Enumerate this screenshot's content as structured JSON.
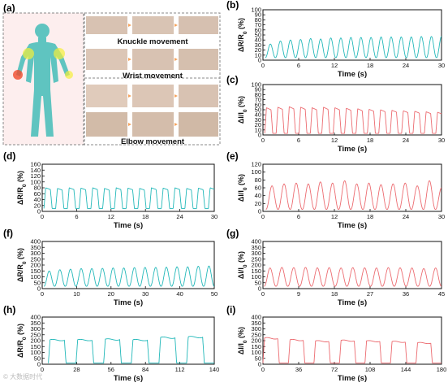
{
  "panel_a": {
    "label": "(a)",
    "captions": [
      "Knuckle movement",
      "Wrist movement",
      "Elbow movement"
    ],
    "colors": {
      "body": "#5fc4c0",
      "background": "#fdeeee",
      "glow_yellow": "#f3ef3a",
      "glow_red": "#f04a2a"
    }
  },
  "watermark": "© 大数据时代",
  "colors": {
    "cyan": "#22b8b9",
    "red": "#ec6b70"
  },
  "chart_data": [
    {
      "id": "b",
      "label": "(b)",
      "type": "line",
      "color": "#22b8b9",
      "xlabel": "Time (s)",
      "ylabel": "ΔR/R0 (%)",
      "xlim": [
        0,
        30
      ],
      "xticks": [
        0,
        6,
        12,
        18,
        24,
        30
      ],
      "ylim": [
        0,
        100
      ],
      "yticks": [
        0,
        10,
        20,
        30,
        40,
        50,
        60,
        70,
        80,
        90,
        100
      ],
      "series": [
        {
          "shape": "spike",
          "baseline": 5,
          "peaks": [
            32,
            38,
            40,
            41,
            43,
            42,
            44,
            44,
            45,
            45,
            45,
            46,
            46,
            46,
            46,
            47,
            47,
            47
          ],
          "cycles": 17.5,
          "x_start": 0.4,
          "x_end": 30
        }
      ]
    },
    {
      "id": "c",
      "label": "(c)",
      "type": "line",
      "color": "#ec6b70",
      "xlabel": "Time (s)",
      "ylabel": "ΔI/I0 (%)",
      "xlim": [
        0,
        30
      ],
      "xticks": [
        0,
        6,
        12,
        18,
        24,
        30
      ],
      "ylim": [
        0,
        100
      ],
      "yticks": [
        0,
        10,
        20,
        30,
        40,
        50,
        60,
        70,
        80,
        90,
        100
      ],
      "series": [
        {
          "shape": "plateau",
          "baseline": 3,
          "peaks": [
            54,
            55,
            56,
            55,
            54,
            55,
            54,
            53,
            52,
            51,
            50,
            49,
            48,
            47,
            46,
            45
          ],
          "cycles": 15.5,
          "x_start": 0.3,
          "x_end": 30
        }
      ]
    },
    {
      "id": "d",
      "label": "(d)",
      "type": "line",
      "color": "#22b8b9",
      "xlabel": "Time (s)",
      "ylabel": "ΔR/R0 (%)",
      "xlim": [
        0,
        30
      ],
      "xticks": [
        0,
        6,
        12,
        18,
        24,
        30
      ],
      "ylim": [
        0,
        160
      ],
      "yticks": [
        0,
        20,
        40,
        60,
        80,
        100,
        120,
        140,
        160
      ],
      "series": [
        {
          "shape": "plateau",
          "baseline": 10,
          "peaks": [
            80,
            78,
            80,
            79,
            80,
            78,
            80,
            79,
            78,
            80,
            79,
            80,
            78,
            79,
            80
          ],
          "cycles": 14.5,
          "x_start": 0.3,
          "x_end": 30
        }
      ]
    },
    {
      "id": "e",
      "label": "(e)",
      "type": "line",
      "color": "#ec6b70",
      "xlabel": "Time (s)",
      "ylabel": "ΔI/I0 (%)",
      "xlim": [
        0,
        30
      ],
      "xticks": [
        0,
        6,
        12,
        18,
        24,
        30
      ],
      "ylim": [
        0,
        120
      ],
      "yticks": [
        0,
        20,
        40,
        60,
        80,
        100,
        120
      ],
      "series": [
        {
          "shape": "spike",
          "baseline": 5,
          "peaks": [
            65,
            70,
            72,
            70,
            75,
            72,
            78,
            70,
            72,
            68,
            70,
            72,
            65,
            78,
            60
          ],
          "cycles": 14.5,
          "x_start": 0.5,
          "x_end": 30
        }
      ]
    },
    {
      "id": "f",
      "label": "(f)",
      "type": "line",
      "color": "#22b8b9",
      "xlabel": "Time (s)",
      "ylabel": "ΔR/R0 (%)",
      "xlim": [
        0,
        50
      ],
      "xticks": [
        0,
        10,
        20,
        30,
        40,
        50
      ],
      "ylim": [
        0,
        400
      ],
      "yticks": [
        0,
        50,
        100,
        150,
        200,
        250,
        300,
        350,
        400
      ],
      "series": [
        {
          "shape": "spike",
          "baseline": 20,
          "peaks": [
            150,
            160,
            165,
            170,
            170,
            172,
            175,
            175,
            178,
            180,
            180,
            182,
            185,
            185,
            190,
            192
          ],
          "cycles": 16,
          "x_start": 0.5,
          "x_end": 50
        }
      ]
    },
    {
      "id": "g",
      "label": "(g)",
      "type": "line",
      "color": "#ec6b70",
      "xlabel": "Time (s)",
      "ylabel": "ΔI/I0 (%)",
      "xlim": [
        0,
        45
      ],
      "xticks": [
        0,
        9,
        18,
        27,
        36,
        45
      ],
      "ylim": [
        0,
        400
      ],
      "yticks": [
        0,
        50,
        100,
        150,
        200,
        250,
        300,
        350,
        400
      ],
      "series": [
        {
          "shape": "spike",
          "baseline": 20,
          "peaks": [
            175,
            180,
            178,
            180,
            176,
            178,
            175,
            178,
            176,
            175,
            178,
            176,
            175,
            170,
            175
          ],
          "cycles": 15,
          "x_start": 0.3,
          "x_end": 45
        }
      ]
    },
    {
      "id": "h",
      "label": "(h)",
      "type": "line",
      "color": "#22b8b9",
      "xlabel": "Time (s)",
      "ylabel": "ΔR/R0 (%)",
      "xlim": [
        0,
        140
      ],
      "xticks": [
        0,
        28,
        56,
        84,
        112,
        140
      ],
      "ylim": [
        0,
        400
      ],
      "yticks": [
        0,
        50,
        100,
        150,
        200,
        250,
        300,
        350,
        400
      ],
      "series": [
        {
          "shape": "square",
          "baseline": 10,
          "peaks": [
            205,
            205,
            210,
            205,
            225,
            230
          ],
          "cycles": 6,
          "x_start": 5,
          "x_end": 140
        }
      ]
    },
    {
      "id": "i",
      "label": "(i)",
      "type": "line",
      "color": "#ec6b70",
      "xlabel": "Time (s)",
      "ylabel": "ΔI/I0 (%)",
      "xlim": [
        0,
        180
      ],
      "xticks": [
        0,
        36,
        72,
        108,
        144,
        180
      ],
      "ylim": [
        0,
        400
      ],
      "yticks": [
        0,
        50,
        100,
        150,
        200,
        250,
        300,
        350,
        400
      ],
      "series": [
        {
          "shape": "square",
          "baseline": 10,
          "peaks": [
            220,
            205,
            195,
            200,
            195,
            190,
            180
          ],
          "cycles": 7,
          "x_start": 0,
          "x_end": 180
        }
      ]
    }
  ]
}
